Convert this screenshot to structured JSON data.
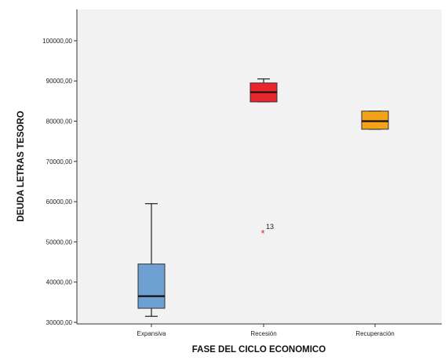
{
  "chart_data": {
    "type": "boxplot",
    "xlabel": "FASE DEL CICLO ECONOMICO",
    "ylabel": "DEUDA LETRAS TESORO",
    "ylim": [
      30000,
      105000
    ],
    "yticks": [
      30000,
      40000,
      50000,
      60000,
      70000,
      80000,
      90000,
      100000
    ],
    "ytick_labels": [
      "30000,00",
      "40000,00",
      "50000,00",
      "60000,00",
      "70000,00",
      "80000,00",
      "90000,00",
      "100000,00"
    ],
    "categories": [
      "Expansiva",
      "Recesión",
      "Recuperación"
    ],
    "boxes": [
      {
        "category": "Expansiva",
        "whisker_low": 31500,
        "q1": 33500,
        "median": 36500,
        "q3": 44500,
        "whisker_high": 59500,
        "color": "#6fa0d2"
      },
      {
        "category": "Recesión",
        "whisker_low": 84800,
        "q1": 84800,
        "median": 87200,
        "q3": 89500,
        "whisker_high": 90500,
        "color": "#e8262b"
      },
      {
        "category": "Recuperación",
        "whisker_low": 78000,
        "q1": 78000,
        "median": 80000,
        "q3": 82500,
        "whisker_high": 82500,
        "color": "#f4a21a"
      }
    ],
    "outliers": [
      {
        "category": "Recesión",
        "value": 52200,
        "label": "13",
        "symbol": "*",
        "color": "#e8262b"
      }
    ],
    "grid": false,
    "plot_background": "#f2f2f2"
  }
}
